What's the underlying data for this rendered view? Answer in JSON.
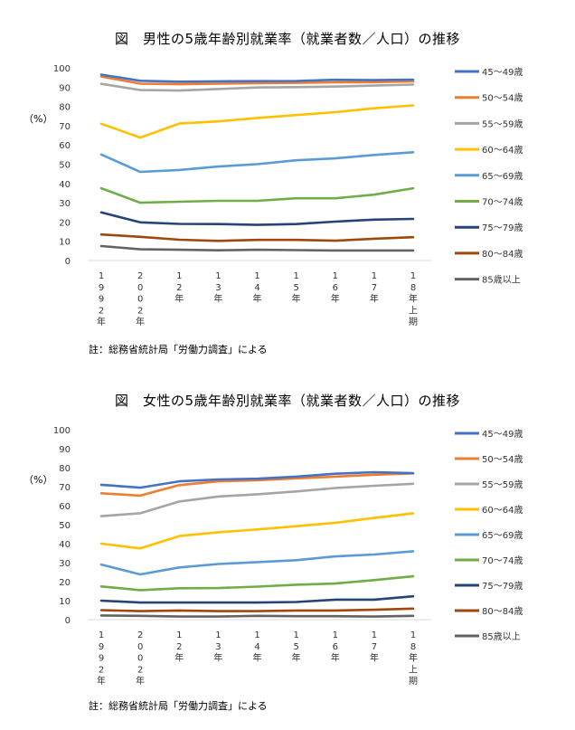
{
  "chart_data": [
    {
      "type": "line",
      "title": "図　男性の5歳年齢別就業率（就業者数／人口）の推移",
      "ylabel": "（%）",
      "xlabel": "",
      "ylim": [
        0,
        100
      ],
      "yticks": [
        0,
        10,
        20,
        30,
        40,
        50,
        60,
        70,
        80,
        90,
        100
      ],
      "grid": false,
      "legend": "right",
      "categories": [
        "1992年",
        "2002年",
        "12年",
        "13年",
        "14年",
        "15年",
        "16年",
        "17年",
        "18年上期"
      ],
      "note": "註：総務省統計局「労働力調査」による",
      "series": [
        {
          "name": "45～49歳",
          "color": "#4472c4",
          "values": [
            96.5,
            93.3,
            92.8,
            93.0,
            93.1,
            93.2,
            93.8,
            93.6,
            93.9
          ]
        },
        {
          "name": "50～54歳",
          "color": "#ed7d31",
          "values": [
            95.5,
            91.8,
            91.5,
            91.8,
            92.0,
            92.2,
            92.5,
            92.6,
            93.0
          ]
        },
        {
          "name": "55～59歳",
          "color": "#a5a5a5",
          "values": [
            91.7,
            88.5,
            88.2,
            89.0,
            89.8,
            90.0,
            90.3,
            90.8,
            91.3
          ]
        },
        {
          "name": "60～64歳",
          "color": "#ffc000",
          "values": [
            71.0,
            63.8,
            71.1,
            72.2,
            74.0,
            75.5,
            77.0,
            79.0,
            80.5
          ]
        },
        {
          "name": "65～69歳",
          "color": "#5b9bd5",
          "values": [
            55.0,
            46.0,
            47.0,
            48.8,
            50.0,
            52.0,
            53.0,
            54.8,
            56.2
          ]
        },
        {
          "name": "70～74歳",
          "color": "#70ad47",
          "values": [
            37.5,
            30.0,
            30.5,
            31.0,
            31.0,
            32.3,
            32.3,
            34.2,
            37.5
          ]
        },
        {
          "name": "75～79歳",
          "color": "#264478",
          "values": [
            25.0,
            19.8,
            19.0,
            18.9,
            18.5,
            18.9,
            20.2,
            21.2,
            21.6
          ]
        },
        {
          "name": "80～84歳",
          "color": "#9e480e",
          "values": [
            13.5,
            12.3,
            10.8,
            10.2,
            10.7,
            10.7,
            10.3,
            11.3,
            12.1
          ]
        },
        {
          "name": "85歳以上",
          "color": "#636363",
          "values": [
            7.5,
            5.8,
            5.6,
            5.3,
            5.6,
            5.4,
            5.2,
            5.2,
            5.2
          ]
        }
      ]
    },
    {
      "type": "line",
      "title": "図　女性の5歳年齢別就業率（就業者数／人口）の推移",
      "ylabel": "（%）",
      "xlabel": "",
      "ylim": [
        0,
        100
      ],
      "yticks": [
        0,
        10,
        20,
        30,
        40,
        50,
        60,
        70,
        80,
        90,
        100
      ],
      "grid": false,
      "legend": "right",
      "categories": [
        "1992年",
        "2002年",
        "12年",
        "13年",
        "14年",
        "15年",
        "16年",
        "17年",
        "18年上期"
      ],
      "note": "註：総務省統計局「労働力調査」による",
      "series": [
        {
          "name": "45～49歳",
          "color": "#4472c4",
          "values": [
            71.0,
            69.5,
            72.8,
            73.8,
            74.2,
            75.3,
            76.8,
            77.6,
            77.1
          ]
        },
        {
          "name": "50～54歳",
          "color": "#ed7d31",
          "values": [
            66.5,
            65.3,
            70.8,
            72.8,
            73.4,
            74.4,
            75.3,
            76.3,
            77.0
          ]
        },
        {
          "name": "55～59歳",
          "color": "#a5a5a5",
          "values": [
            54.5,
            56.0,
            62.2,
            64.8,
            66.0,
            67.5,
            69.3,
            70.5,
            71.5
          ]
        },
        {
          "name": "60～64歳",
          "color": "#ffc000",
          "values": [
            40.0,
            37.5,
            44.0,
            46.0,
            47.5,
            49.2,
            51.0,
            53.5,
            56.0
          ]
        },
        {
          "name": "65～69歳",
          "color": "#5b9bd5",
          "values": [
            29.0,
            23.8,
            27.5,
            29.3,
            30.3,
            31.3,
            33.3,
            34.3,
            36.0
          ]
        },
        {
          "name": "70～74歳",
          "color": "#70ad47",
          "values": [
            17.5,
            15.5,
            16.5,
            16.6,
            17.4,
            18.4,
            19.0,
            20.8,
            22.8
          ]
        },
        {
          "name": "75～79歳",
          "color": "#264478",
          "values": [
            10.0,
            9.0,
            9.0,
            9.0,
            9.0,
            9.3,
            10.5,
            10.5,
            12.3
          ]
        },
        {
          "name": "80～84歳",
          "color": "#9e480e",
          "values": [
            5.0,
            4.5,
            4.8,
            4.5,
            4.5,
            4.8,
            4.8,
            5.2,
            5.8
          ]
        },
        {
          "name": "85歳以上",
          "color": "#636363",
          "values": [
            2.2,
            2.0,
            1.6,
            1.6,
            2.0,
            1.8,
            1.8,
            1.6,
            2.0
          ]
        }
      ]
    }
  ]
}
